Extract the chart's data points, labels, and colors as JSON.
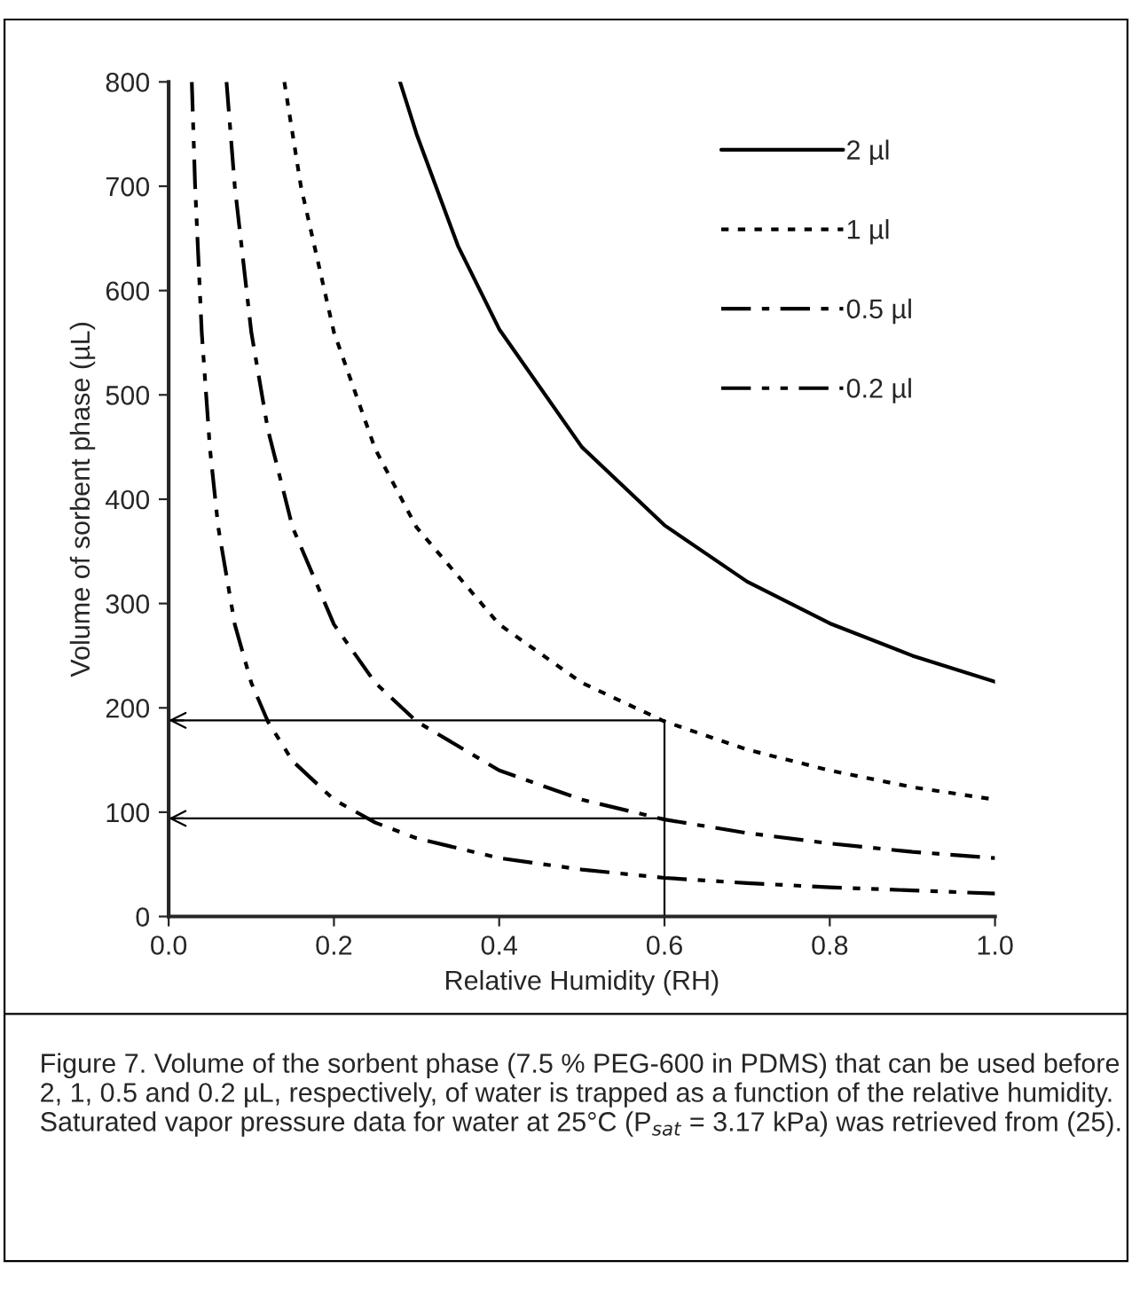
{
  "chart_data": {
    "type": "line",
    "xlabel": "Relative Humidity (RH)",
    "ylabel": "Volume of sorbent phase (µL)",
    "xlim": [
      0,
      1
    ],
    "xticks": [
      {
        "value": 0,
        "label": "0.0"
      },
      0.2,
      0.4,
      0.6,
      0.8,
      {
        "value": 1,
        "label": "1.0"
      }
    ],
    "ylim": [
      0,
      800
    ],
    "yticks": [
      0,
      100,
      200,
      300,
      400,
      500,
      600,
      700,
      800
    ],
    "grid": false,
    "legend": "top right",
    "series": [
      {
        "name": "2 µl",
        "color": "#000000",
        "line_style": "solid",
        "x": [
          0.28,
          0.3,
          0.35,
          0.4,
          0.5,
          0.6,
          0.7,
          0.8,
          0.9,
          1.0
        ],
        "values": [
          800,
          750,
          643,
          563,
          450,
          375,
          321,
          281,
          250,
          225
        ]
      },
      {
        "name": "1 µl",
        "color": "#000000",
        "line_style": "dotted",
        "x": [
          0.14,
          0.16,
          0.2,
          0.25,
          0.3,
          0.4,
          0.5,
          0.6,
          0.7,
          0.8,
          0.9,
          1.0
        ],
        "values": [
          800,
          700,
          560,
          448,
          373,
          280,
          224,
          187,
          160,
          140,
          124,
          112
        ]
      },
      {
        "name": "0.5 µl",
        "color": "#000000",
        "line_style": "dashdot",
        "x": [
          0.07,
          0.08,
          0.1,
          0.12,
          0.15,
          0.2,
          0.25,
          0.3,
          0.4,
          0.5,
          0.6,
          0.7,
          0.8,
          0.9,
          1.0
        ],
        "values": [
          800,
          700,
          560,
          467,
          373,
          280,
          224,
          187,
          140,
          112,
          93,
          80,
          70,
          62,
          56
        ]
      },
      {
        "name": "0.2 µl",
        "color": "#000000",
        "line_style": "dashdotdot",
        "x": [
          0.028,
          0.032,
          0.04,
          0.05,
          0.06,
          0.08,
          0.1,
          0.12,
          0.15,
          0.2,
          0.25,
          0.3,
          0.4,
          0.5,
          0.6,
          0.7,
          0.8,
          0.9,
          1.0
        ],
        "values": [
          800,
          700,
          560,
          448,
          373,
          280,
          224,
          187,
          149,
          112,
          90,
          75,
          56,
          45,
          37,
          32,
          28,
          25,
          22
        ]
      }
    ],
    "ref_lines": [
      {
        "axis": "y",
        "value": 188,
        "color": "#000000",
        "line_style": "solid"
      },
      {
        "axis": "y",
        "value": 94,
        "color": "#000000",
        "line_style": "solid"
      },
      {
        "axis": "x",
        "value": 0.6,
        "color": "#000000",
        "line_style": "solid"
      }
    ],
    "annotations": [
      "Figure 7. Volume of the sorbent phase (7.5 % PEG-600 in PDMS) that can be used before 2, 1, 0.5 and 0.2 µL, respectively, of water is trapped as a function of the relative humidity. Saturated vapor pressure data for water at 25°C (P$_{sat}$ = 3.17 kPa) was retrieved from (25)."
    ]
  }
}
